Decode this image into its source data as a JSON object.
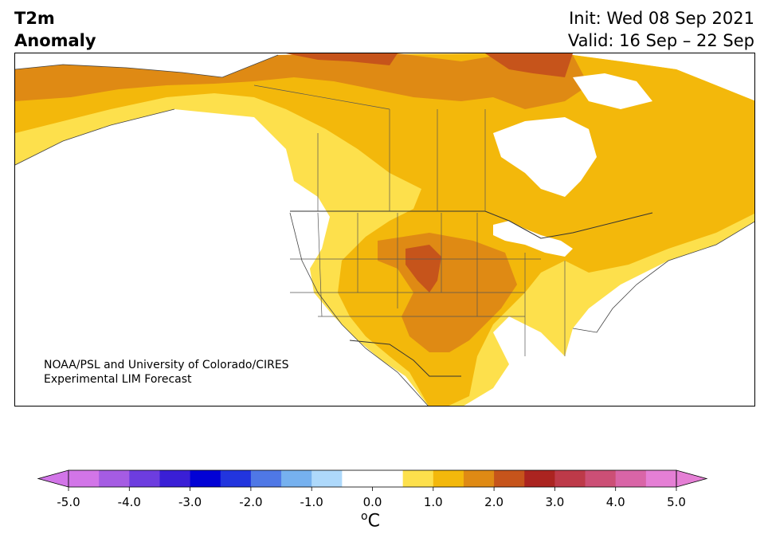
{
  "header": {
    "variable": "T2m",
    "field": "Anomaly",
    "init": "Init: Wed 08 Sep 2021",
    "valid": "Valid: 16 Sep – 22 Sep"
  },
  "credit": {
    "line1": "NOAA/PSL and University of Colorado/CIRES",
    "line2": "Experimental LIM Forecast"
  },
  "colorbar": {
    "unit_main": "C",
    "unit_sup": "o",
    "range": [
      -5.0,
      5.0
    ],
    "tick_labels": [
      "-5.0",
      "-4.0",
      "-3.0",
      "-2.0",
      "-1.0",
      "0.0",
      "1.0",
      "2.0",
      "3.0",
      "4.0",
      "5.0"
    ],
    "colors": [
      "#d275e8",
      "#a55ce3",
      "#6d3ddf",
      "#3a1fd6",
      "#0202d5",
      "#2235de",
      "#4f78e6",
      "#76b1ef",
      "#aed9fb",
      "#ffffff",
      "#ffffff",
      "#fde04c",
      "#f3b80b",
      "#df8a14",
      "#c6541b",
      "#ab2420",
      "#bd3a49",
      "#cc4f76",
      "#d965a7",
      "#e57fd5"
    ]
  }
}
